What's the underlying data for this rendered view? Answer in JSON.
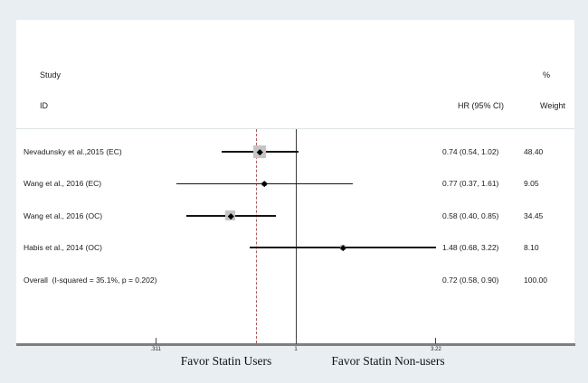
{
  "chart_data": {
    "type": "forest",
    "title": "",
    "header": {
      "study_line1": "Study",
      "study_line2": "ID",
      "pct": "%",
      "hr_col": "HR (95% CI)",
      "weight_col": "Weight"
    },
    "rows": [
      {
        "label": "Nevadunsky et al.,2015 (EC)",
        "hr": 0.74,
        "ci_low": 0.54,
        "ci_high": 1.02,
        "hr_text": "0.74 (0.54, 1.02)",
        "weight": 48.4,
        "weight_text": "48.40"
      },
      {
        "label": "Wang et al., 2016 (EC)",
        "hr": 0.77,
        "ci_low": 0.37,
        "ci_high": 1.61,
        "hr_text": "0.77 (0.37, 1.61)",
        "weight": 9.05,
        "weight_text": "9.05"
      },
      {
        "label": "Wang et al., 2016 (OC)",
        "hr": 0.58,
        "ci_low": 0.4,
        "ci_high": 0.85,
        "hr_text": "0.58 (0.40, 0.85)",
        "weight": 34.45,
        "weight_text": "34.45"
      },
      {
        "label": "Habis et al., 2014 (OC)",
        "hr": 1.48,
        "ci_low": 0.68,
        "ci_high": 3.22,
        "hr_text": "1.48 (0.68, 3.22)",
        "weight": 8.1,
        "weight_text": "8.10"
      }
    ],
    "overall": {
      "label": "Overall  (I-squared = 35.1%, p = 0.202)",
      "hr": 0.72,
      "ci_low": 0.58,
      "ci_high": 0.9,
      "hr_text": "0.72 (0.58, 0.90)",
      "weight_text": "100.00"
    },
    "axis": {
      "scale": "log",
      "null_value": 1,
      "overall_line_value": 0.72,
      "ticks": [
        {
          "value": 0.311,
          "label": ".311"
        },
        {
          "value": 1,
          "label": "1"
        },
        {
          "value": 3.22,
          "label": "3.22"
        }
      ]
    },
    "footer": {
      "left_label": "Favor Statin Users",
      "right_label": "Favor Statin Non-users"
    },
    "colors": {
      "background": "#e9eef2",
      "panel": "#ffffff",
      "axis_line": "#7f7f7f",
      "null_line": "#3c3c3c",
      "overall_dashed_line": "#ad5c5c",
      "diamond_stroke": "#1a1a6b",
      "square_fill": "#c5c5c5",
      "text": "#1a1a1a"
    }
  }
}
